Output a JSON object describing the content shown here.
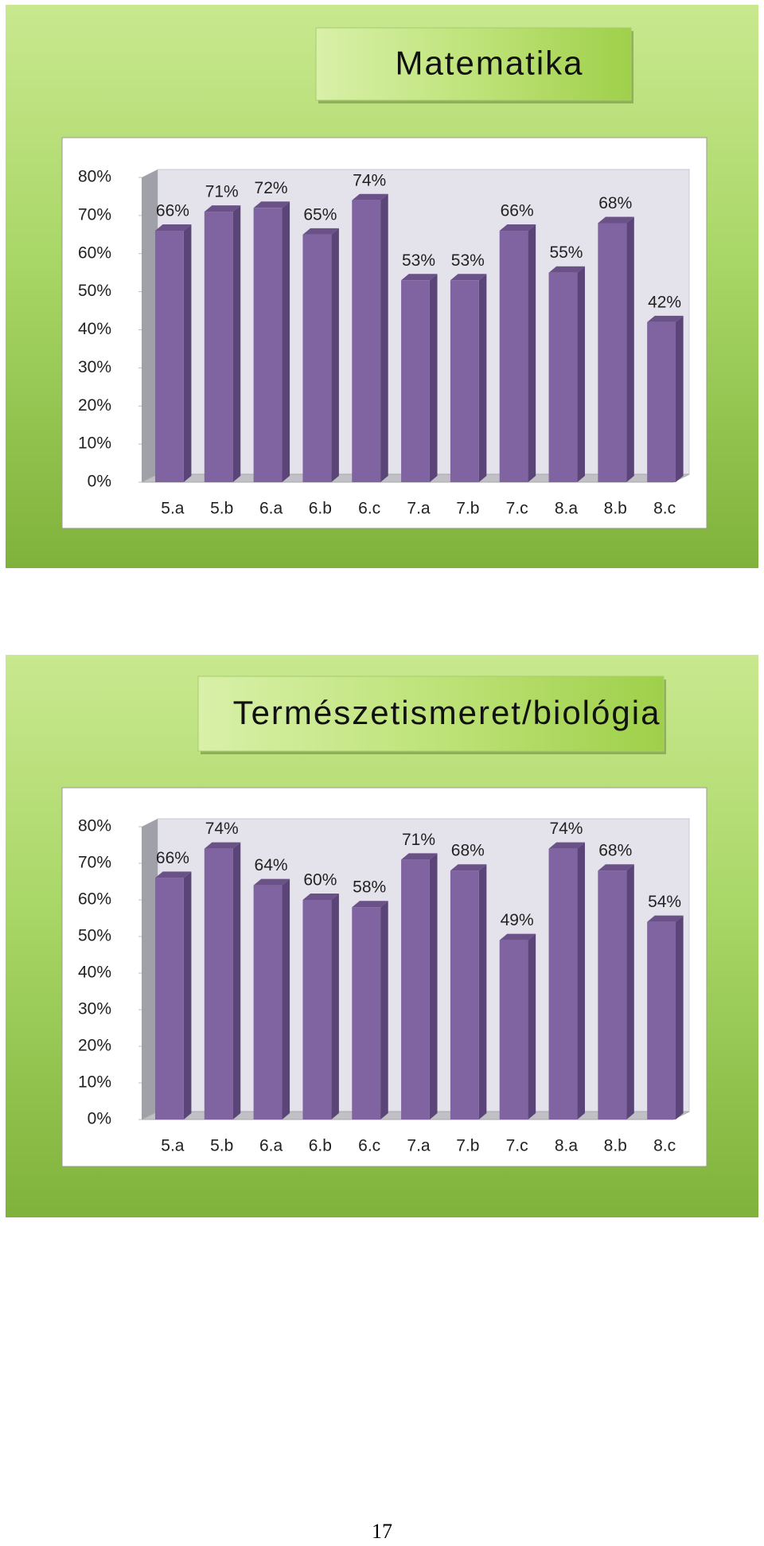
{
  "chart_data": [
    {
      "type": "bar",
      "title": "Matematika",
      "categories": [
        "5.a",
        "5.b",
        "6.a",
        "6.b",
        "6.c",
        "7.a",
        "7.b",
        "7.c",
        "8.a",
        "8.b",
        "8.c"
      ],
      "values": [
        66,
        71,
        72,
        65,
        74,
        53,
        53,
        66,
        55,
        68,
        42
      ],
      "value_labels": [
        "66%",
        "71%",
        "72%",
        "65%",
        "74%",
        "53%",
        "53%",
        "66%",
        "55%",
        "68%",
        "42%"
      ],
      "color": "#8064a2",
      "ylim": [
        0,
        80
      ],
      "yticks": [
        {
          "value": 0,
          "label": "0%"
        },
        {
          "value": 10,
          "label": "10%"
        },
        {
          "value": 20,
          "label": "20%"
        },
        {
          "value": 30,
          "label": "30%"
        },
        {
          "value": 40,
          "label": "40%"
        },
        {
          "value": 50,
          "label": "50%"
        },
        {
          "value": 60,
          "label": "60%"
        },
        {
          "value": 70,
          "label": "70%"
        },
        {
          "value": 80,
          "label": "80%"
        }
      ]
    },
    {
      "type": "bar",
      "title": "Természetismeret/biológia",
      "categories": [
        "5.a",
        "5.b",
        "6.a",
        "6.b",
        "6.c",
        "7.a",
        "7.b",
        "7.c",
        "8.a",
        "8.b",
        "8.c"
      ],
      "values": [
        66,
        74,
        64,
        60,
        58,
        71,
        68,
        49,
        74,
        68,
        54
      ],
      "value_labels": [
        "66%",
        "74%",
        "64%",
        "60%",
        "58%",
        "71%",
        "68%",
        "49%",
        "74%",
        "68%",
        "54%"
      ],
      "color": "#8064a2",
      "ylim": [
        0,
        80
      ],
      "yticks": [
        {
          "value": 0,
          "label": "0%"
        },
        {
          "value": 10,
          "label": "10%"
        },
        {
          "value": 20,
          "label": "20%"
        },
        {
          "value": 30,
          "label": "30%"
        },
        {
          "value": 40,
          "label": "40%"
        },
        {
          "value": 50,
          "label": "50%"
        },
        {
          "value": 60,
          "label": "60%"
        },
        {
          "value": 70,
          "label": "70%"
        },
        {
          "value": 80,
          "label": "80%"
        }
      ]
    }
  ],
  "page_number": "17"
}
